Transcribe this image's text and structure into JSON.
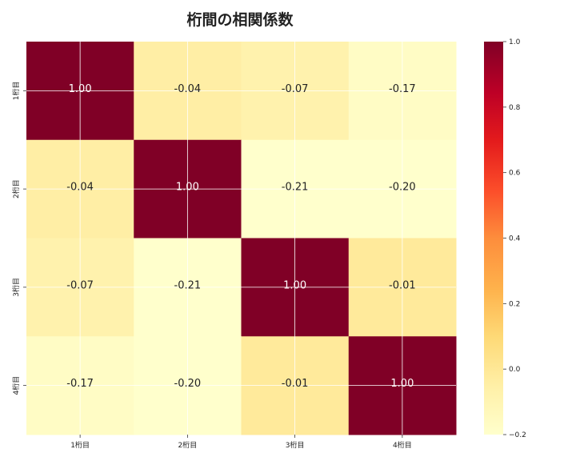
{
  "chart_data": {
    "type": "heatmap",
    "title": "桁間の相関係数",
    "rows": [
      "1桁目",
      "2桁目",
      "3桁目",
      "4桁目"
    ],
    "cols": [
      "1桁目",
      "2桁目",
      "3桁目",
      "4桁目"
    ],
    "values": [
      [
        1.0,
        -0.04,
        -0.07,
        -0.17
      ],
      [
        -0.04,
        1.0,
        -0.21,
        -0.2
      ],
      [
        -0.07,
        -0.21,
        1.0,
        -0.01
      ],
      [
        -0.17,
        -0.2,
        -0.01,
        1.0
      ]
    ],
    "value_labels": [
      [
        "1.00",
        "-0.04",
        "-0.07",
        "-0.17"
      ],
      [
        "-0.04",
        "1.00",
        "-0.21",
        "-0.20"
      ],
      [
        "-0.07",
        "-0.21",
        "1.00",
        "-0.01"
      ],
      [
        "-0.17",
        "-0.20",
        "-0.01",
        "1.00"
      ]
    ],
    "colorscale": "YlOrRd",
    "vmin": -0.2,
    "vmax": 1.0,
    "colorbar_ticks": [
      "1.0",
      "0.8",
      "0.6",
      "0.4",
      "0.2",
      "0.0",
      "−0.2"
    ],
    "colorbar_values": [
      1.0,
      0.8,
      0.6,
      0.4,
      0.2,
      0.0,
      -0.2
    ],
    "grid": true
  }
}
